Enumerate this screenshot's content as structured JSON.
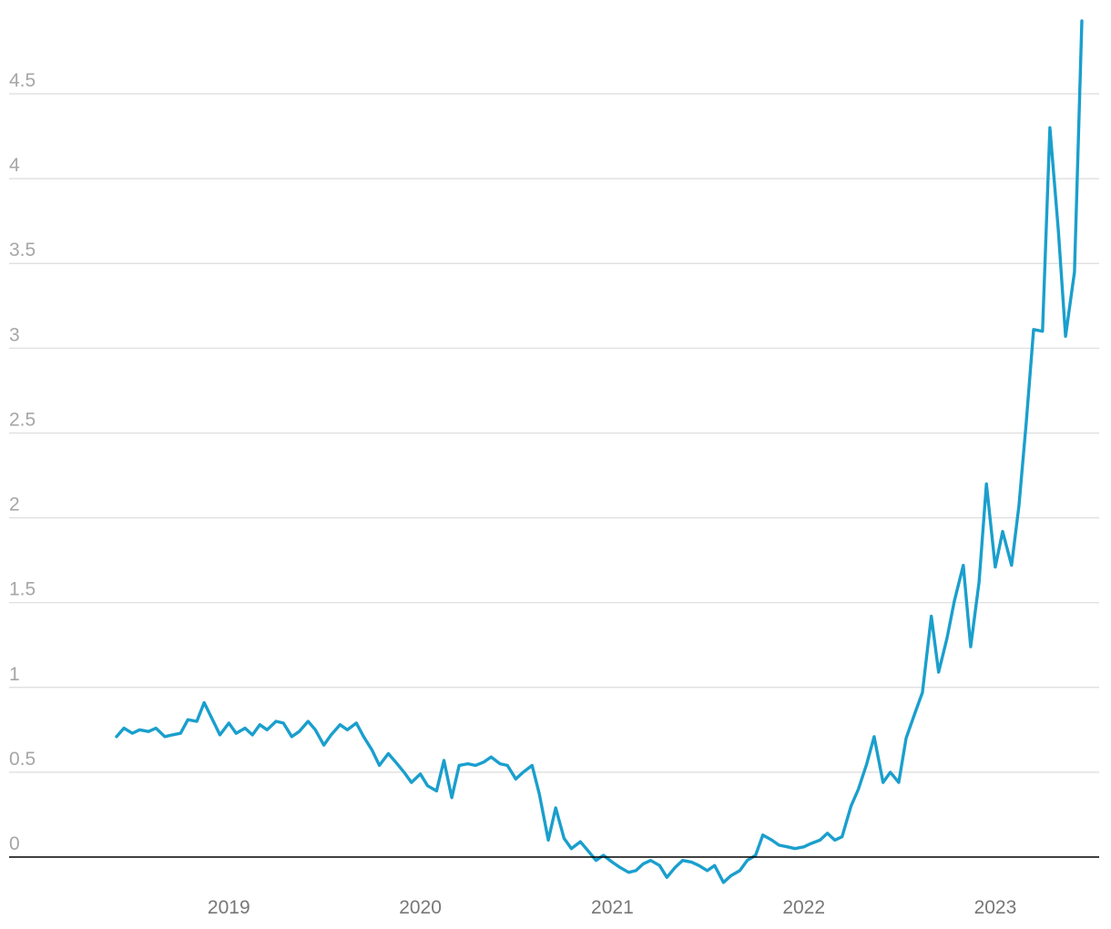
{
  "chart_data": {
    "type": "line",
    "title": "",
    "xlabel": "",
    "ylabel": "",
    "ylim": [
      0,
      4.5
    ],
    "xlim": [
      "2018-06-01",
      "2023-06-15"
    ],
    "grid": true,
    "yticks": [
      "0",
      "0.5",
      "1",
      "1.5",
      "2",
      "2.5",
      "3",
      "3.5",
      "4",
      "4.5"
    ],
    "xticks": [
      {
        "label": "2019",
        "date": "2019-01-01"
      },
      {
        "label": "2020",
        "date": "2020-01-01"
      },
      {
        "label": "2021",
        "date": "2021-01-01"
      },
      {
        "label": "2022",
        "date": "2022-01-01"
      },
      {
        "label": "2023",
        "date": "2023-01-01"
      }
    ],
    "series": [
      {
        "color": "#1a9fcd",
        "points": [
          [
            "2018-06-01",
            0.71
          ],
          [
            "2018-06-15",
            0.76
          ],
          [
            "2018-07-01",
            0.73
          ],
          [
            "2018-07-15",
            0.75
          ],
          [
            "2018-08-01",
            0.74
          ],
          [
            "2018-08-15",
            0.76
          ],
          [
            "2018-09-01",
            0.71
          ],
          [
            "2018-09-15",
            0.72
          ],
          [
            "2018-10-01",
            0.73
          ],
          [
            "2018-10-15",
            0.81
          ],
          [
            "2018-11-01",
            0.8
          ],
          [
            "2018-11-15",
            0.91
          ],
          [
            "2018-12-01",
            0.81
          ],
          [
            "2018-12-15",
            0.72
          ],
          [
            "2019-01-01",
            0.79
          ],
          [
            "2019-01-15",
            0.73
          ],
          [
            "2019-02-01",
            0.76
          ],
          [
            "2019-02-15",
            0.72
          ],
          [
            "2019-03-01",
            0.78
          ],
          [
            "2019-03-15",
            0.75
          ],
          [
            "2019-04-01",
            0.8
          ],
          [
            "2019-04-15",
            0.79
          ],
          [
            "2019-05-01",
            0.71
          ],
          [
            "2019-05-15",
            0.74
          ],
          [
            "2019-06-01",
            0.8
          ],
          [
            "2019-06-15",
            0.75
          ],
          [
            "2019-07-01",
            0.66
          ],
          [
            "2019-07-15",
            0.72
          ],
          [
            "2019-08-01",
            0.78
          ],
          [
            "2019-08-15",
            0.75
          ],
          [
            "2019-09-01",
            0.79
          ],
          [
            "2019-09-15",
            0.71
          ],
          [
            "2019-10-01",
            0.63
          ],
          [
            "2019-10-15",
            0.54
          ],
          [
            "2019-11-01",
            0.61
          ],
          [
            "2019-11-15",
            0.56
          ],
          [
            "2019-12-01",
            0.5
          ],
          [
            "2019-12-15",
            0.44
          ],
          [
            "2020-01-01",
            0.49
          ],
          [
            "2020-01-15",
            0.42
          ],
          [
            "2020-02-01",
            0.39
          ],
          [
            "2020-02-15",
            0.57
          ],
          [
            "2020-03-01",
            0.35
          ],
          [
            "2020-03-15",
            0.54
          ],
          [
            "2020-04-01",
            0.55
          ],
          [
            "2020-04-15",
            0.54
          ],
          [
            "2020-05-01",
            0.56
          ],
          [
            "2020-05-15",
            0.59
          ],
          [
            "2020-06-01",
            0.55
          ],
          [
            "2020-06-15",
            0.54
          ],
          [
            "2020-07-01",
            0.46
          ],
          [
            "2020-07-15",
            0.5
          ],
          [
            "2020-08-01",
            0.54
          ],
          [
            "2020-08-15",
            0.37
          ],
          [
            "2020-09-01",
            0.1
          ],
          [
            "2020-09-15",
            0.29
          ],
          [
            "2020-10-01",
            0.11
          ],
          [
            "2020-10-15",
            0.05
          ],
          [
            "2020-11-01",
            0.09
          ],
          [
            "2020-11-15",
            0.04
          ],
          [
            "2020-12-01",
            -0.02
          ],
          [
            "2020-12-15",
            0.01
          ],
          [
            "2021-01-01",
            -0.03
          ],
          [
            "2021-01-15",
            -0.06
          ],
          [
            "2021-02-01",
            -0.09
          ],
          [
            "2021-02-15",
            -0.08
          ],
          [
            "2021-03-01",
            -0.04
          ],
          [
            "2021-03-15",
            -0.02
          ],
          [
            "2021-04-01",
            -0.05
          ],
          [
            "2021-04-15",
            -0.12
          ],
          [
            "2021-05-01",
            -0.06
          ],
          [
            "2021-05-15",
            -0.02
          ],
          [
            "2021-06-01",
            -0.03
          ],
          [
            "2021-06-15",
            -0.05
          ],
          [
            "2021-07-01",
            -0.08
          ],
          [
            "2021-07-15",
            -0.05
          ],
          [
            "2021-08-01",
            -0.15
          ],
          [
            "2021-08-15",
            -0.11
          ],
          [
            "2021-09-01",
            -0.08
          ],
          [
            "2021-09-15",
            -0.02
          ],
          [
            "2021-10-01",
            0.01
          ],
          [
            "2021-10-15",
            0.13
          ],
          [
            "2021-11-01",
            0.1
          ],
          [
            "2021-11-15",
            0.07
          ],
          [
            "2021-12-01",
            0.06
          ],
          [
            "2021-12-15",
            0.05
          ],
          [
            "2022-01-01",
            0.06
          ],
          [
            "2022-01-15",
            0.08
          ],
          [
            "2022-02-01",
            0.1
          ],
          [
            "2022-02-15",
            0.14
          ],
          [
            "2022-03-01",
            0.1
          ],
          [
            "2022-03-15",
            0.12
          ],
          [
            "2022-04-01",
            0.3
          ],
          [
            "2022-04-15",
            0.4
          ],
          [
            "2022-05-01",
            0.55
          ],
          [
            "2022-05-15",
            0.71
          ],
          [
            "2022-06-01",
            0.44
          ],
          [
            "2022-06-15",
            0.5
          ],
          [
            "2022-07-01",
            0.44
          ],
          [
            "2022-07-15",
            0.7
          ],
          [
            "2022-08-01",
            0.85
          ],
          [
            "2022-08-15",
            0.97
          ],
          [
            "2022-09-01",
            1.42
          ],
          [
            "2022-09-15",
            1.09
          ],
          [
            "2022-10-01",
            1.29
          ],
          [
            "2022-10-15",
            1.51
          ],
          [
            "2022-11-01",
            1.72
          ],
          [
            "2022-11-15",
            1.24
          ],
          [
            "2022-12-01",
            1.62
          ],
          [
            "2022-12-15",
            2.2
          ],
          [
            "2023-01-01",
            1.71
          ],
          [
            "2023-01-15",
            1.92
          ],
          [
            "2023-02-01",
            1.72
          ],
          [
            "2023-02-15",
            2.07
          ],
          [
            "2023-03-01",
            2.56
          ],
          [
            "2023-03-15",
            3.11
          ],
          [
            "2023-04-01",
            3.1
          ],
          [
            "2023-04-15",
            4.3
          ],
          [
            "2023-05-01",
            3.7
          ],
          [
            "2023-05-15",
            3.07
          ],
          [
            "2023-06-01",
            3.45
          ],
          [
            "2023-06-15",
            4.93
          ]
        ]
      }
    ]
  }
}
